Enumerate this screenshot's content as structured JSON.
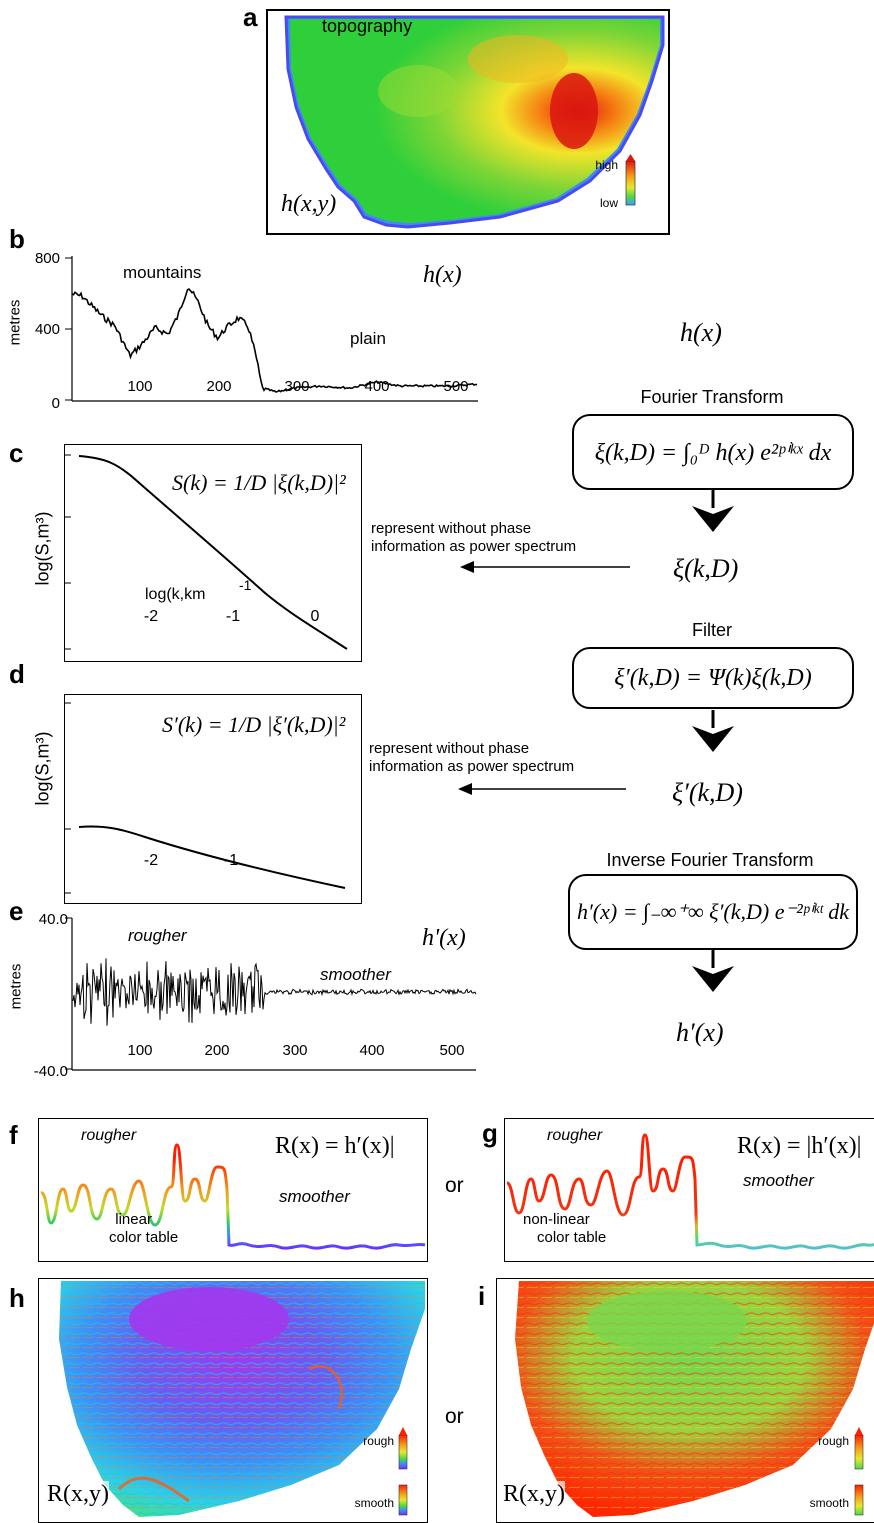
{
  "panels": {
    "a": {
      "letter": "a",
      "title": "topography",
      "formula": "h(x,y)",
      "scale_high": "high",
      "scale_low": "low"
    },
    "b": {
      "letter": "b",
      "ylabel": "metres",
      "label_mountains": "mountains",
      "label_plain": "plain",
      "formula": "h(x)",
      "yticks": [
        "800",
        "400",
        "0"
      ],
      "xticks": [
        "100",
        "200",
        "300",
        "400",
        "500"
      ]
    },
    "c": {
      "letter": "c",
      "ylabel": "log(S,m³)",
      "xlabel": "log(k,km",
      "xlabel_exp": "-1",
      "xticks": [
        "-2",
        "-1",
        "0"
      ],
      "formula": "S(k) = 1/D |ξ(k,D)|²"
    },
    "d": {
      "letter": "d",
      "ylabel": "log(S,m³)",
      "xticks": [
        "-2",
        "-1"
      ],
      "formula": "S′(k) = 1/D |ξ′(k,D)|²"
    },
    "e": {
      "letter": "e",
      "ylabel": "metres",
      "label_rougher": "rougher",
      "label_smoother": "smoother",
      "formula": "h'(x)",
      "yticks": [
        "40.0",
        "-40.0"
      ],
      "xticks": [
        "100",
        "200",
        "300",
        "400",
        "500"
      ]
    },
    "f": {
      "letter": "f",
      "label_rougher": "rougher",
      "label_smoother": "smoother",
      "label_table1": "linear",
      "label_table2": "color table",
      "formula": "R(x) = h′(x)|"
    },
    "g": {
      "letter": "g",
      "label_rougher": "rougher",
      "label_smoother": "smoother",
      "label_table1": "non-linear",
      "label_table2": "color table",
      "formula": "R(x) = |h′(x)|"
    },
    "h": {
      "letter": "h",
      "formula": "R(x,y)",
      "scale_high": "rough",
      "scale_low": "smooth"
    },
    "i": {
      "letter": "i",
      "formula": "R(x,y)",
      "scale_high": "rough",
      "scale_low": "smooth"
    }
  },
  "or_labels": [
    "or",
    "or"
  ],
  "flow": {
    "input": "h(x)",
    "step1_title": "Fourier Transform",
    "step1_formula": "ξ(k,D) = ∫₀ᴰ h(x) e²ᵖⁱᵏˣ dx",
    "out1": "ξ(k,D)",
    "arrow_note1_line1": "represent without phase",
    "arrow_note1_line2": "information as power spectrum",
    "step2_title": "Filter",
    "step2_formula": "ξ′(k,D) = Ψ(k)ξ(k,D)",
    "out2": "ξ′(k,D)",
    "arrow_note2_line1": "represent without phase",
    "arrow_note2_line2": "information as power spectrum",
    "step3_title": "Inverse Fourier Transform",
    "step3_formula": "h′(x) = ∫₋∞⁺∞ ξ′(k,D) e⁻²ᵖⁱᵏᵗ dk",
    "out3": "h′(x)"
  },
  "colors": {
    "rough": "#ff2a00",
    "smooth": "#6a2cff",
    "green": "#36d43c",
    "yellow": "#e7e42a"
  }
}
